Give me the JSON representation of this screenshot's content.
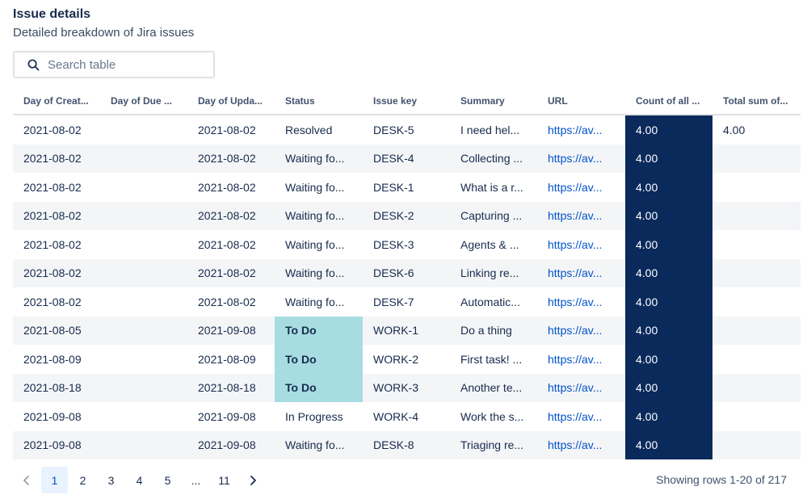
{
  "header": {
    "title": "Issue details",
    "subtitle": "Detailed breakdown of Jira issues"
  },
  "search": {
    "placeholder": "Search table",
    "icon": "search-icon"
  },
  "columns": [
    "Day of Creat...",
    "Day of Due ...",
    "Day of Upda...",
    "Status",
    "Issue key",
    "Summary",
    "URL",
    "Count of all ...",
    "Total sum of..."
  ],
  "rows": [
    {
      "created": "2021-08-02",
      "due": "",
      "updated": "2021-08-02",
      "status": "Resolved",
      "key": "DESK-5",
      "summary": "I need hel...",
      "url": "https://av...",
      "count": "4.00",
      "total": "4.00"
    },
    {
      "created": "2021-08-02",
      "due": "",
      "updated": "2021-08-02",
      "status": "Waiting fo...",
      "key": "DESK-4",
      "summary": "Collecting ...",
      "url": "https://av...",
      "count": "4.00",
      "total": ""
    },
    {
      "created": "2021-08-02",
      "due": "",
      "updated": "2021-08-02",
      "status": "Waiting fo...",
      "key": "DESK-1",
      "summary": "What is a r...",
      "url": "https://av...",
      "count": "4.00",
      "total": ""
    },
    {
      "created": "2021-08-02",
      "due": "",
      "updated": "2021-08-02",
      "status": "Waiting fo...",
      "key": "DESK-2",
      "summary": "Capturing ...",
      "url": "https://av...",
      "count": "4.00",
      "total": ""
    },
    {
      "created": "2021-08-02",
      "due": "",
      "updated": "2021-08-02",
      "status": "Waiting fo...",
      "key": "DESK-3",
      "summary": "Agents & ...",
      "url": "https://av...",
      "count": "4.00",
      "total": ""
    },
    {
      "created": "2021-08-02",
      "due": "",
      "updated": "2021-08-02",
      "status": "Waiting fo...",
      "key": "DESK-6",
      "summary": "Linking re...",
      "url": "https://av...",
      "count": "4.00",
      "total": ""
    },
    {
      "created": "2021-08-02",
      "due": "",
      "updated": "2021-08-02",
      "status": "Waiting fo...",
      "key": "DESK-7",
      "summary": "Automatic...",
      "url": "https://av...",
      "count": "4.00",
      "total": ""
    },
    {
      "created": "2021-08-05",
      "due": "",
      "updated": "2021-09-08",
      "status": "To Do",
      "key": "WORK-1",
      "summary": "Do a thing",
      "url": "https://av...",
      "count": "4.00",
      "total": ""
    },
    {
      "created": "2021-08-09",
      "due": "",
      "updated": "2021-08-09",
      "status": "To Do",
      "key": "WORK-2",
      "summary": "First task! ...",
      "url": "https://av...",
      "count": "4.00",
      "total": ""
    },
    {
      "created": "2021-08-18",
      "due": "",
      "updated": "2021-08-18",
      "status": "To Do",
      "key": "WORK-3",
      "summary": "Another te...",
      "url": "https://av...",
      "count": "4.00",
      "total": ""
    },
    {
      "created": "2021-09-08",
      "due": "",
      "updated": "2021-09-08",
      "status": "In Progress",
      "key": "WORK-4",
      "summary": "Work the s...",
      "url": "https://av...",
      "count": "4.00",
      "total": ""
    },
    {
      "created": "2021-09-08",
      "due": "",
      "updated": "2021-09-08",
      "status": "Waiting fo...",
      "key": "DESK-8",
      "summary": "Triaging re...",
      "url": "https://av...",
      "count": "4.00",
      "total": ""
    }
  ],
  "highlight": {
    "todo_status": "To Do",
    "todo_color": "#a7dde1",
    "count_color": "#0b2a5c",
    "link_color": "#0052cc"
  },
  "pagination": {
    "prev_icon": "chevron-left-icon",
    "next_icon": "chevron-right-icon",
    "pages": [
      "1",
      "2",
      "3",
      "4",
      "5",
      "...",
      "11"
    ],
    "current": "1",
    "summary": "Showing rows 1-20 of 217"
  }
}
